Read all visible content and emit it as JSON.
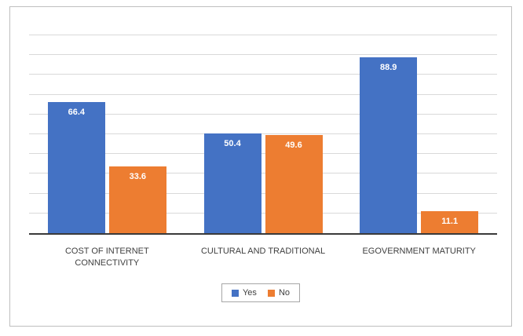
{
  "chart_data": {
    "type": "bar",
    "title": "",
    "xlabel": "",
    "ylabel": "",
    "categories": [
      "COST OF INTERNET CONNECTIVITY",
      "CULTURAL AND TRADITIONAL",
      "EGOVERNMENT MATURITY"
    ],
    "series": [
      {
        "name": "Yes",
        "color": "#4472C4",
        "values": [
          66.4,
          50.4,
          88.9
        ]
      },
      {
        "name": "No",
        "color": "#ED7D31",
        "values": [
          33.6,
          49.6,
          11.1
        ]
      }
    ],
    "ylim": [
      0,
      100
    ],
    "gridline_step": 10,
    "grid": true,
    "legend_position": "bottom",
    "data_labels": true,
    "data_label_color": "#FFFFFF"
  },
  "style": {
    "gridline_color": "#D9D9D9",
    "axis_color": "#3A3A3A",
    "frame_border_color": "#BFBFBF",
    "category_text_color": "#404040"
  }
}
